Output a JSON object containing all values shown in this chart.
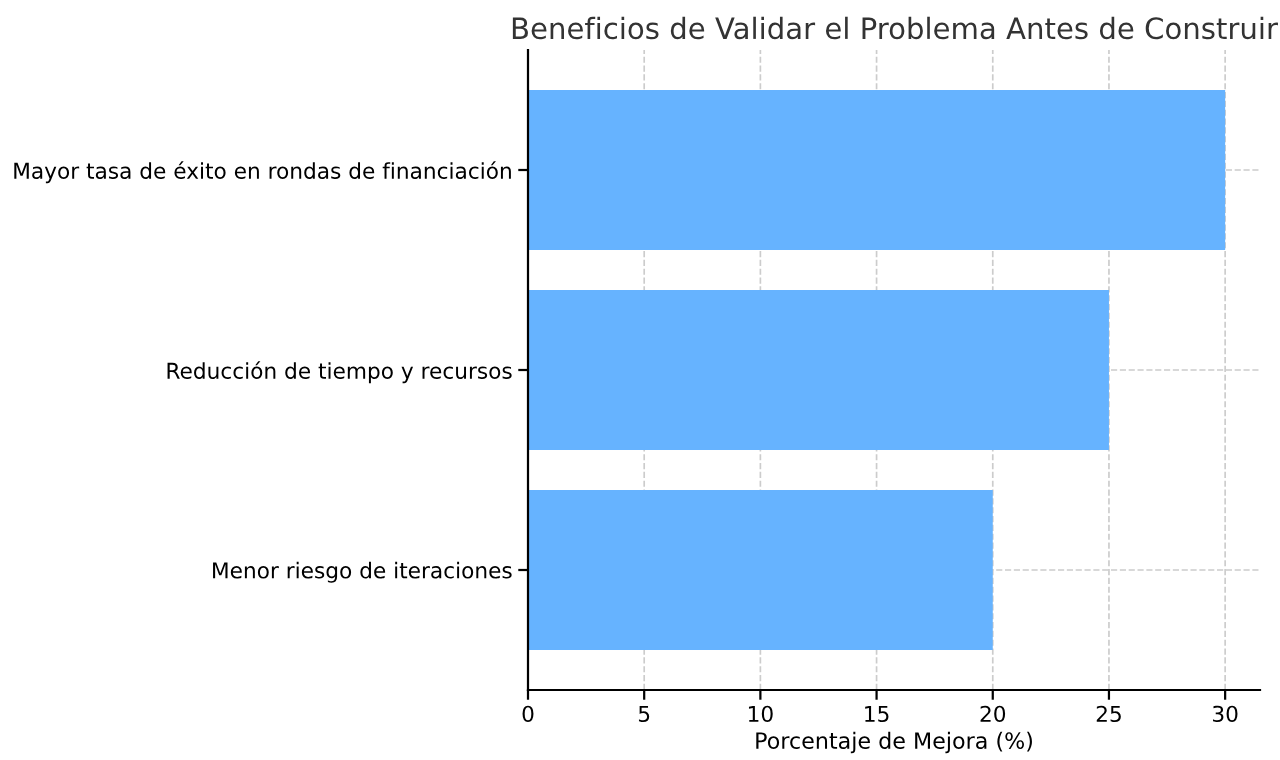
{
  "chart_data": {
    "type": "bar",
    "orientation": "horizontal",
    "title": "Beneficios de Validar el Problema Antes de Construir",
    "xlabel": "Porcentaje de Mejora (%)",
    "categories": [
      "Mayor tasa de éxito en rondas de financiación",
      "Reducción de tiempo y recursos",
      "Menor riesgo de iteraciones"
    ],
    "values": [
      30,
      25,
      20
    ],
    "color": "#66b3ff",
    "xlim": [
      0,
      31.5
    ],
    "xticks": [
      0,
      5,
      10,
      15,
      20,
      25,
      30
    ],
    "grid": true,
    "line_style": "dashed"
  }
}
